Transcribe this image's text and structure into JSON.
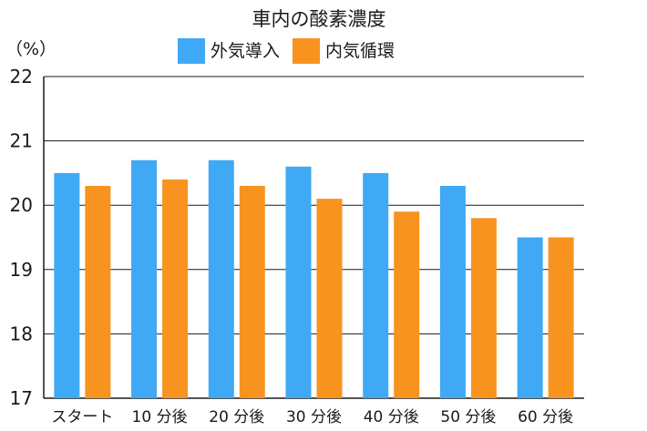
{
  "chart_data": {
    "type": "bar",
    "title": "車内の酸素濃度",
    "unit_label": "（%）",
    "categories": [
      "スタート",
      "10 分後",
      "20 分後",
      "30 分後",
      "40 分後",
      "50 分後",
      "60 分後"
    ],
    "series": [
      {
        "name": "外気導入",
        "color": "#3fa9f5",
        "values": [
          20.5,
          20.7,
          20.7,
          20.6,
          20.5,
          20.3,
          19.5
        ]
      },
      {
        "name": "内気循環",
        "color": "#f7931e",
        "values": [
          20.3,
          20.4,
          20.3,
          20.1,
          19.9,
          19.8,
          19.5
        ]
      }
    ],
    "ylim": [
      17,
      22
    ],
    "yticks": [
      17,
      18,
      19,
      20,
      21,
      22
    ],
    "grid": true,
    "legend_position": "top-center"
  }
}
